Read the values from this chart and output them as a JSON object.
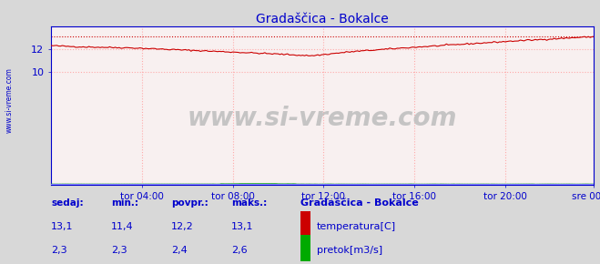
{
  "title": "Gradaščica - Bokalce",
  "bg_color": "#d8d8d8",
  "plot_bg_color": "#f8f0f0",
  "grid_color": "#ffaaaa",
  "temp_color": "#cc0000",
  "flow_color": "#00aa00",
  "baseline_color": "#8888ff",
  "axis_color": "#0000cc",
  "text_color": "#0000cc",
  "temp_min": 11.4,
  "temp_max": 13.1,
  "temp_avg": 12.2,
  "temp_now": 13.1,
  "flow_min": 2.3,
  "flow_max": 2.6,
  "flow_avg": 2.4,
  "flow_now": 2.3,
  "y_min": 0,
  "y_max": 14.0,
  "yticks": [
    10,
    12
  ],
  "xtick_labels": [
    "tor 04:00",
    "tor 08:00",
    "tor 12:00",
    "tor 16:00",
    "tor 20:00",
    "sre 00:00"
  ],
  "n_points": 288,
  "watermark": "www.si-vreme.com",
  "legend_title": "Gradaščica - Bokalce",
  "legend_temp": "temperatura[C]",
  "legend_flow": "pretok[m3/s]",
  "label_sedaj": "sedaj:",
  "label_min": "min.:",
  "label_povpr": "povpr.:",
  "label_maks": "maks.:"
}
